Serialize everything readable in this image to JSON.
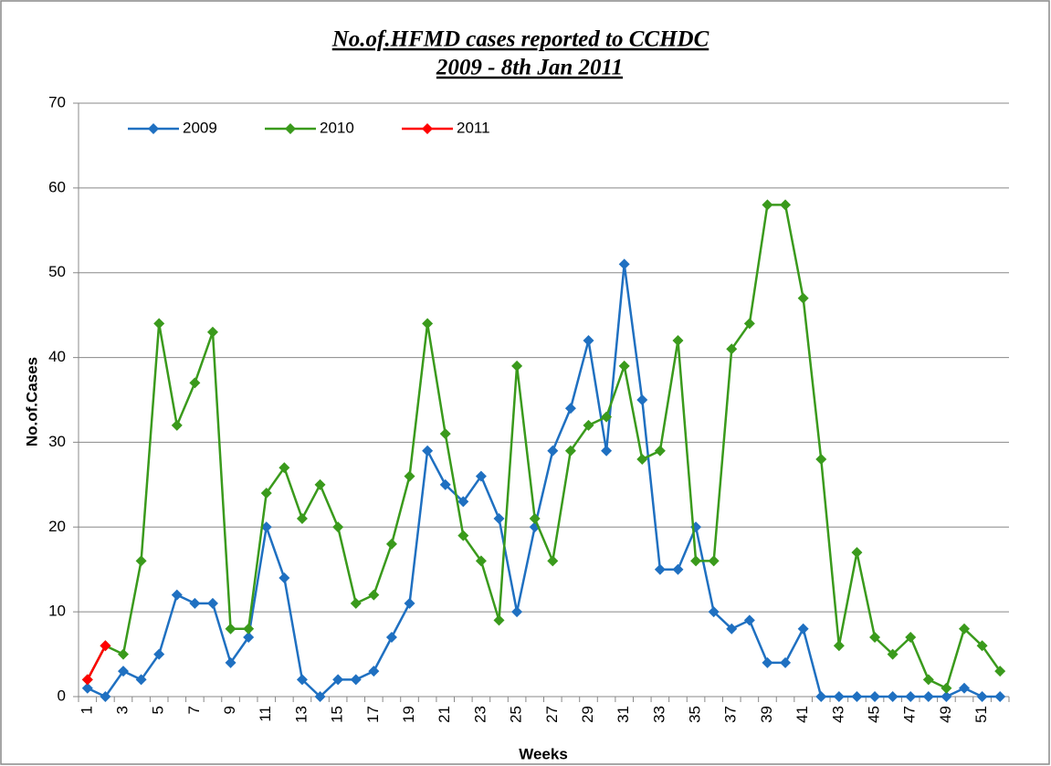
{
  "chart_data": {
    "type": "line",
    "title": [
      "No.of.HFMD cases reported to CCHDC",
      "2009 - 8th Jan 2011"
    ],
    "x_label": "Weeks",
    "y_label": "No.of.Cases",
    "categories": [
      1,
      null,
      3,
      null,
      5,
      null,
      7,
      null,
      9,
      null,
      11,
      null,
      13,
      null,
      15,
      null,
      17,
      null,
      19,
      null,
      21,
      null,
      23,
      null,
      25,
      null,
      27,
      null,
      29,
      null,
      31,
      null,
      33,
      null,
      35,
      null,
      37,
      null,
      39,
      null,
      41,
      null,
      43,
      null,
      45,
      null,
      47,
      null,
      49,
      null,
      51,
      null
    ],
    "series": [
      {
        "name": "2009",
        "color": "#1f70c1",
        "values": [
          1,
          0,
          3,
          2,
          5,
          12,
          11,
          11,
          4,
          7,
          20,
          14,
          2,
          0,
          2,
          2,
          3,
          7,
          11,
          29,
          25,
          23,
          26,
          21,
          10,
          20,
          29,
          34,
          42,
          29,
          51,
          35,
          15,
          15,
          20,
          10,
          8,
          9,
          4,
          4,
          8,
          0,
          0,
          0,
          0,
          0,
          0,
          0,
          0,
          1,
          0,
          0
        ]
      },
      {
        "name": "2010",
        "color": "#3a9a1c",
        "values": [
          2,
          6,
          5,
          16,
          44,
          32,
          37,
          43,
          8,
          8,
          24,
          27,
          21,
          25,
          20,
          11,
          12,
          18,
          26,
          44,
          31,
          19,
          16,
          9,
          39,
          21,
          16,
          29,
          32,
          33,
          39,
          28,
          29,
          42,
          16,
          16,
          41,
          44,
          58,
          58,
          47,
          28,
          6,
          17,
          7,
          5,
          7,
          2,
          1,
          8,
          6,
          3
        ]
      },
      {
        "name": "2011",
        "color": "#ff0000",
        "values": [
          2,
          6,
          null,
          null,
          null,
          null,
          null,
          null,
          null,
          null,
          null,
          null,
          null,
          null,
          null,
          null,
          null,
          null,
          null,
          null,
          null,
          null,
          null,
          null,
          null,
          null,
          null,
          null,
          null,
          null,
          null,
          null,
          null,
          null,
          null,
          null,
          null,
          null,
          null,
          null,
          null,
          null,
          null,
          null,
          null,
          null,
          null,
          null,
          null,
          null,
          null,
          null
        ]
      }
    ],
    "ylim": [
      0,
      70
    ],
    "yticks": [
      0,
      10,
      20,
      30,
      40,
      50,
      60,
      70
    ],
    "grid": true,
    "legend": "top-left"
  }
}
